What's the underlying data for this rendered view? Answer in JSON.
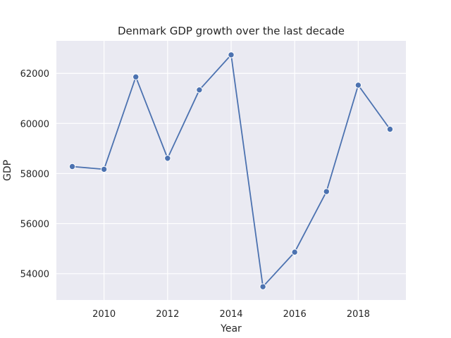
{
  "chart_data": {
    "type": "line",
    "title": "Denmark GDP growth over the last decade",
    "xlabel": "Year",
    "ylabel": "GDP",
    "x": [
      2009,
      2010,
      2011,
      2012,
      2013,
      2014,
      2015,
      2016,
      2017,
      2018,
      2019
    ],
    "series": [
      {
        "values": [
          58280,
          58170,
          61860,
          58610,
          61340,
          62740,
          53480,
          54860,
          57280,
          61530,
          59770
        ]
      }
    ],
    "xlim": [
      2008.5,
      2019.5
    ],
    "ylim": [
      52950,
      63300
    ],
    "xticks": [
      2010,
      2012,
      2014,
      2016,
      2018
    ],
    "yticks": [
      54000,
      56000,
      58000,
      60000,
      62000
    ],
    "xtick_labels": [
      "2010",
      "2012",
      "2014",
      "2016",
      "2018"
    ],
    "ytick_labels": [
      "54000",
      "56000",
      "58000",
      "60000",
      "62000"
    ],
    "grid": true,
    "colors": {
      "background": "#eaeaf2",
      "line": "#4c72b0",
      "grid": "#ffffff"
    }
  }
}
